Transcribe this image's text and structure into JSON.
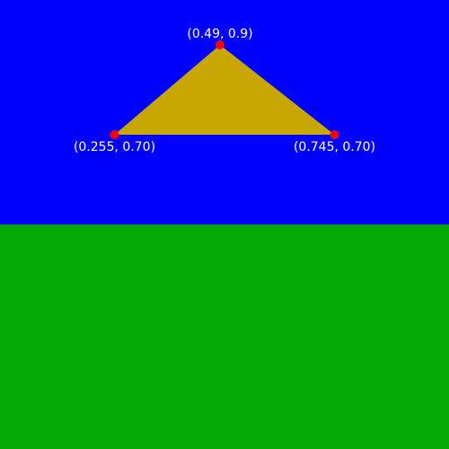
{
  "scene": {
    "points": [
      {
        "x": 0.49,
        "y": 0.9,
        "label": "(0.49, 0.9)"
      },
      {
        "x": 0.255,
        "y": 0.7,
        "label": "(0.255, 0.70)"
      },
      {
        "x": 0.745,
        "y": 0.7,
        "label": "(0.745, 0.70)"
      }
    ],
    "triangle_color": "#c8a800",
    "point_color": "#ff0000"
  }
}
